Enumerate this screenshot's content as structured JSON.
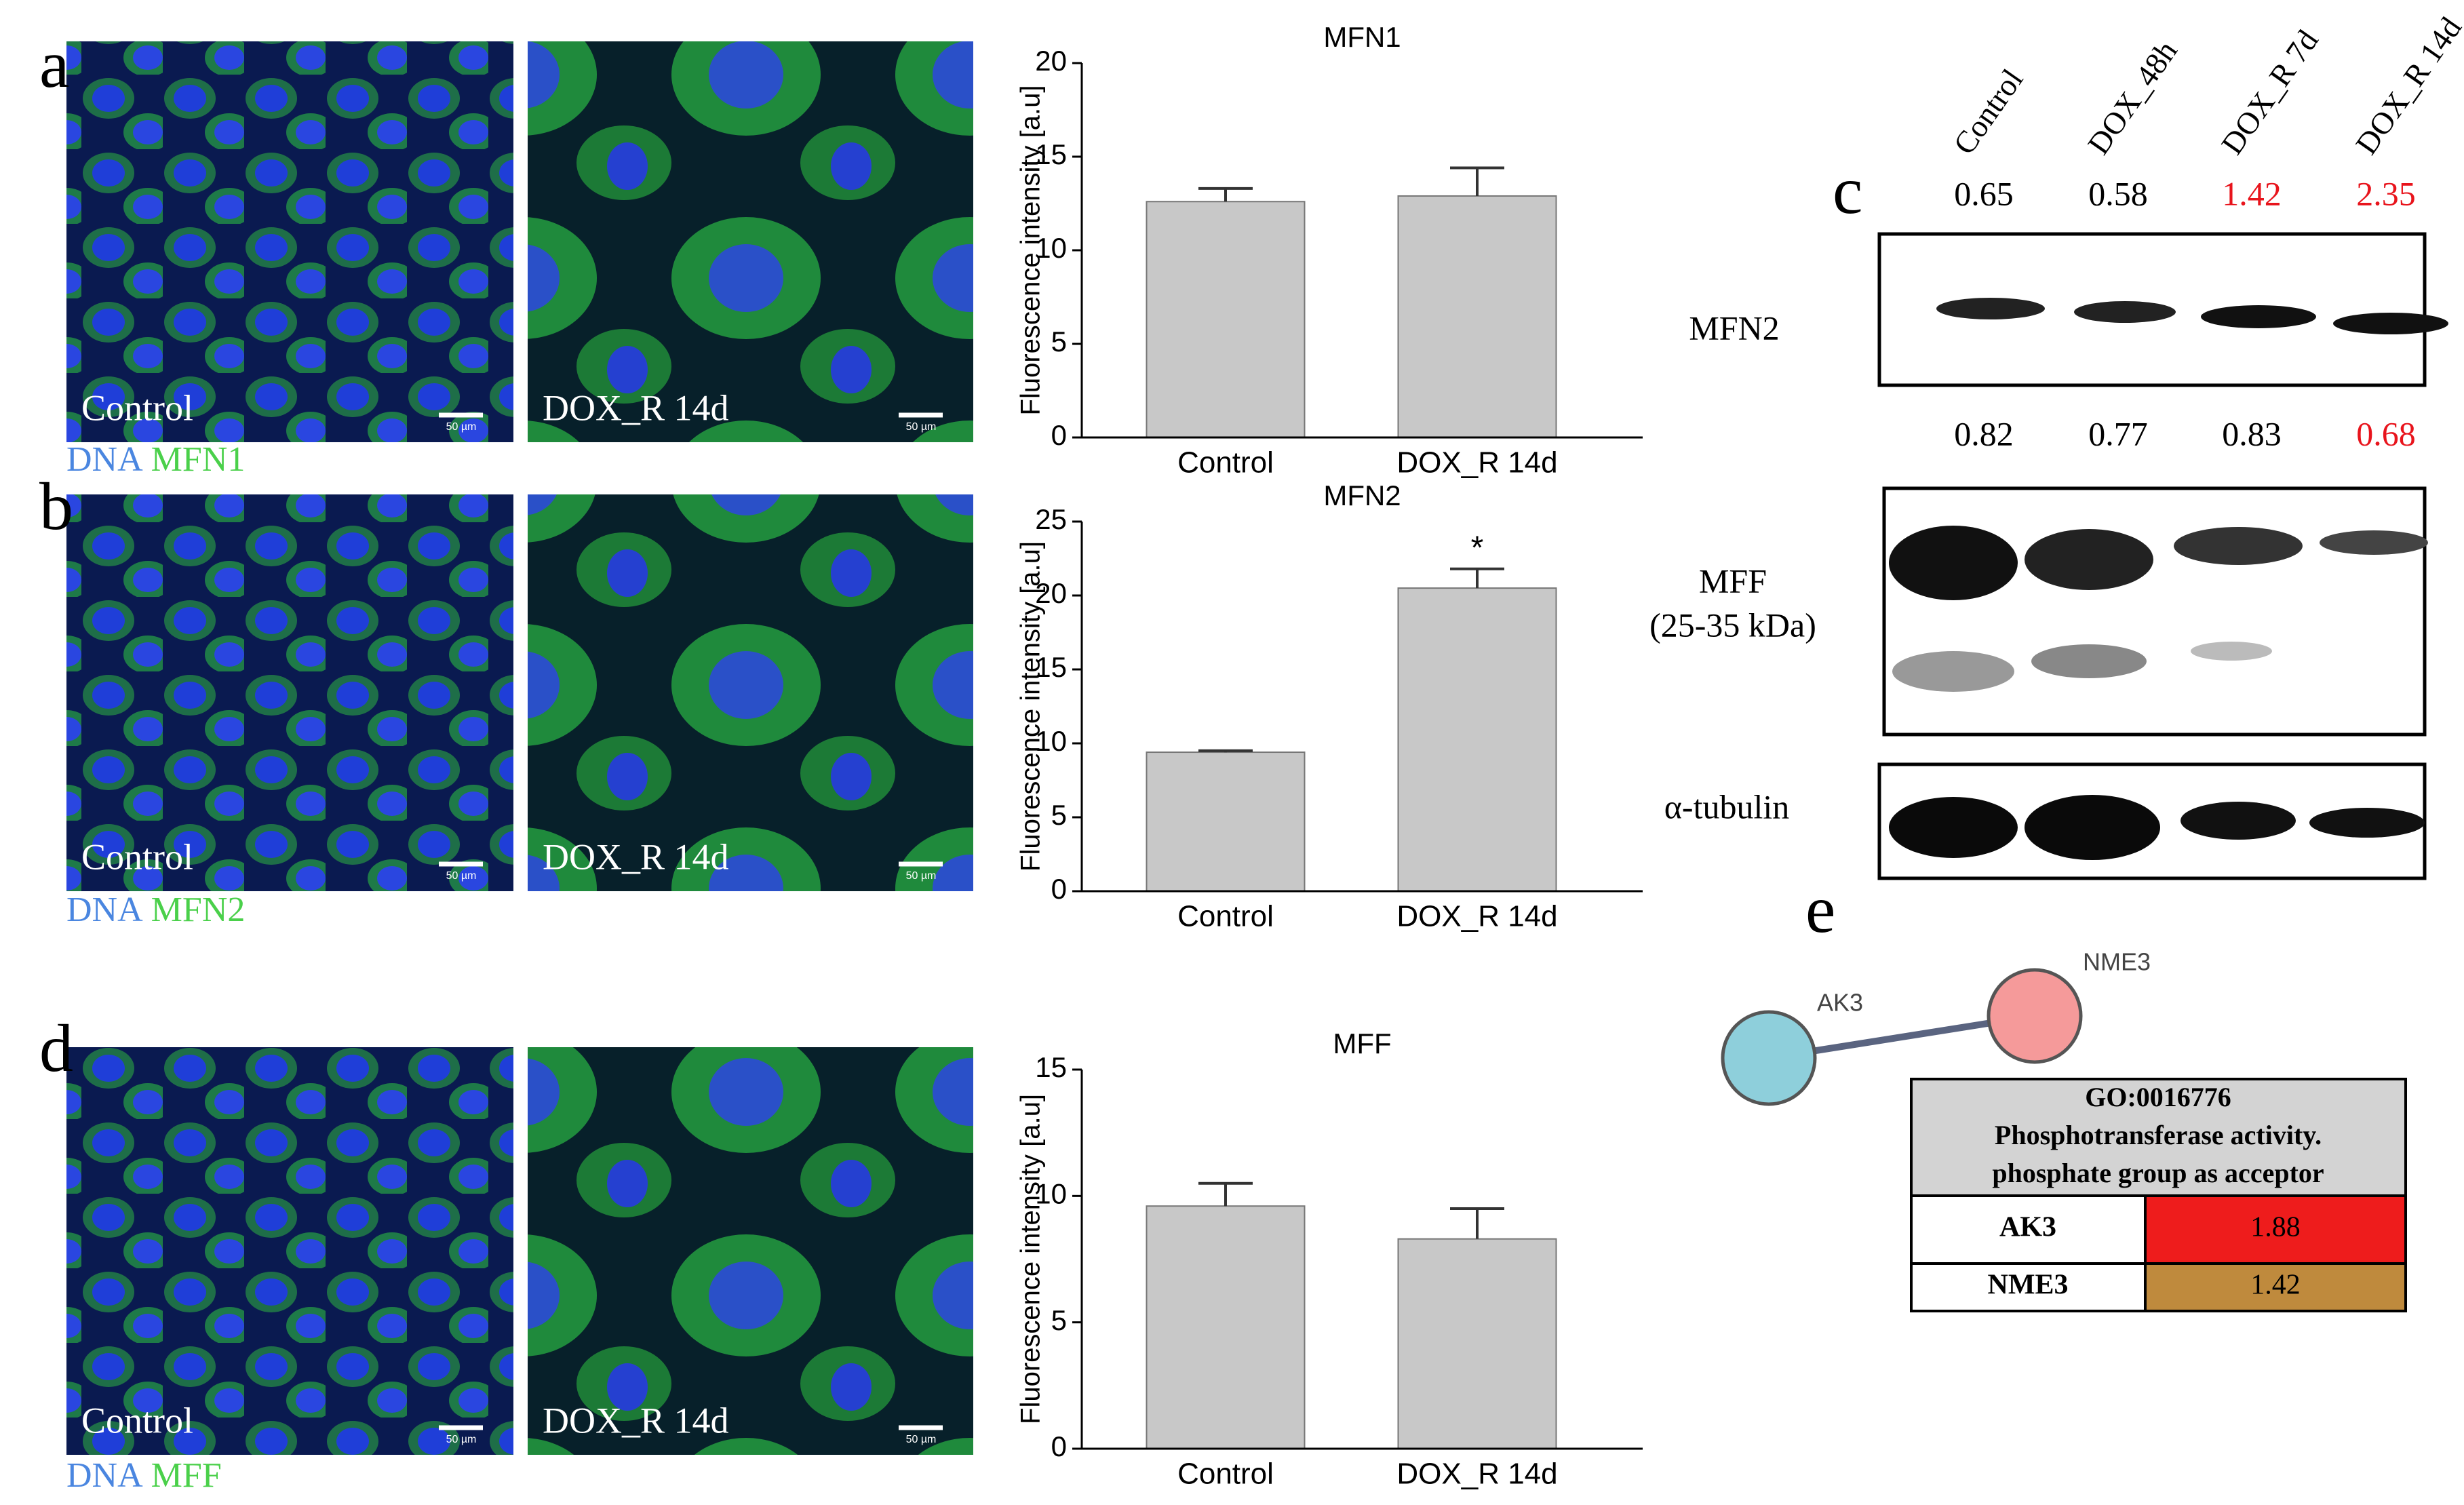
{
  "panels": {
    "a": "a",
    "b": "b",
    "c": "c",
    "d": "d",
    "e": "e"
  },
  "images": {
    "a": {
      "left": "Control",
      "right": "DOX_R 14d",
      "scale": "50 µm",
      "stain": [
        "DNA",
        "MFN1"
      ]
    },
    "b": {
      "left": "Control",
      "right": "DOX_R 14d",
      "scale": "50 µm",
      "stain": [
        "DNA",
        "MFN2"
      ]
    },
    "d": {
      "left": "Control",
      "right": "DOX_R 14d",
      "scale": "50 µm",
      "stain": [
        "DNA",
        "MFF"
      ]
    }
  },
  "chart_data": [
    {
      "type": "bar",
      "title": "MFN1",
      "ylabel": "Fluorescence intensity [a.u]",
      "categories": [
        "Control",
        "DOX_R 14d"
      ],
      "values": [
        12.6,
        12.9
      ],
      "errors": [
        0.7,
        1.5
      ],
      "color": "#c8c8c8",
      "ylim": [
        0,
        20
      ],
      "yticks": [
        0,
        5,
        10,
        15,
        20
      ]
    },
    {
      "type": "bar",
      "title": "MFN2",
      "ylabel": "Fluorescence intensity [a.u]",
      "categories": [
        "Control",
        "DOX_R 14d"
      ],
      "values": [
        9.4,
        20.5
      ],
      "errors": [
        0.1,
        1.3
      ],
      "color": "#c8c8c8",
      "ylim": [
        0,
        25
      ],
      "yticks": [
        0,
        5,
        10,
        15,
        20,
        25
      ],
      "annotations": [
        {
          "text": "*",
          "category": "DOX_R 14d"
        }
      ]
    },
    {
      "type": "bar",
      "title": "MFF",
      "ylabel": "Fluorescence intensity [a.u]",
      "categories": [
        "Control",
        "DOX_R 14d"
      ],
      "values": [
        9.6,
        8.3
      ],
      "errors": [
        0.9,
        1.2
      ],
      "color": "#c8c8c8",
      "ylim": [
        0,
        15
      ],
      "yticks": [
        0,
        5,
        10,
        15
      ]
    }
  ],
  "blot": {
    "lanes": [
      "Control",
      "DOX_48h",
      "DOX_R 7d",
      "DOX_R 14d"
    ],
    "rows": [
      {
        "label": "MFN2",
        "ratios": [
          0.65,
          0.58,
          1.42,
          2.35
        ],
        "ratio_colors": [
          "#000000",
          "#000000",
          "#e8141c",
          "#e8141c"
        ]
      },
      {
        "label": "MFF",
        "sublabel": "(25-35 kDa)",
        "ratios": [
          0.82,
          0.77,
          0.83,
          0.68
        ],
        "ratio_colors": [
          "#000000",
          "#000000",
          "#000000",
          "#e8141c"
        ]
      },
      {
        "label": "α-tubulin"
      }
    ]
  },
  "network": {
    "nodes": [
      {
        "label": "AK3",
        "color": "#8ecfdb"
      },
      {
        "label": "NME3",
        "color": "#f59a9a"
      }
    ]
  },
  "table": {
    "header": [
      "GO:0016776",
      "Phosphotransferase activity.",
      "phosphate group as acceptor"
    ],
    "rows": [
      [
        "AK3",
        1.88
      ],
      [
        "NME3",
        1.42
      ]
    ],
    "row_colors": [
      "#ee1c1c",
      "#bf8a3d"
    ]
  }
}
